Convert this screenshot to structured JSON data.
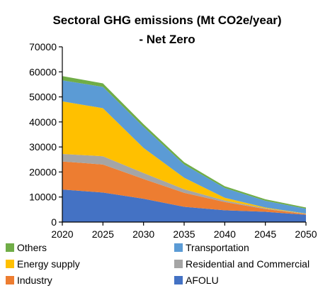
{
  "chart_data": {
    "type": "area",
    "stacked": true,
    "title": [
      "Sectoral GHG emissions (Mt CO2e/year)",
      "- Net Zero"
    ],
    "xlabel": "",
    "ylabel": "",
    "x": [
      2020,
      2025,
      2030,
      2035,
      2040,
      2045,
      2050
    ],
    "x_ticks": [
      "2020",
      "2025",
      "2030",
      "2035",
      "2040",
      "2045",
      "2050"
    ],
    "y_ticks": [
      "0",
      "10000",
      "20000",
      "30000",
      "40000",
      "50000",
      "60000",
      "70000"
    ],
    "ylim": [
      0,
      70000
    ],
    "grid": false,
    "legend_position": "bottom",
    "series": [
      {
        "name": "AFOLU",
        "color": "#4472C4",
        "values": [
          13000,
          11800,
          9300,
          6100,
          4700,
          4100,
          2900
        ]
      },
      {
        "name": "Industry",
        "color": "#ED7D31",
        "values": [
          11200,
          11200,
          7900,
          5600,
          3300,
          1100,
          300
        ]
      },
      {
        "name": "Residential and Commercial",
        "color": "#A5A5A5",
        "values": [
          3000,
          3300,
          2400,
          1400,
          600,
          300,
          100
        ]
      },
      {
        "name": "Energy supply",
        "color": "#FFC000",
        "values": [
          21000,
          19200,
          10000,
          4600,
          1100,
          300,
          100
        ]
      },
      {
        "name": "Transportation",
        "color": "#5B9BD5",
        "values": [
          8400,
          8500,
          8400,
          5300,
          3900,
          2700,
          1900
        ]
      },
      {
        "name": "Others",
        "color": "#70AD47",
        "values": [
          1700,
          1400,
          1100,
          900,
          700,
          600,
          500
        ]
      }
    ],
    "legend_order": [
      "Others",
      "Transportation",
      "Energy supply",
      "Residential and Commercial",
      "Industry",
      "AFOLU"
    ]
  }
}
